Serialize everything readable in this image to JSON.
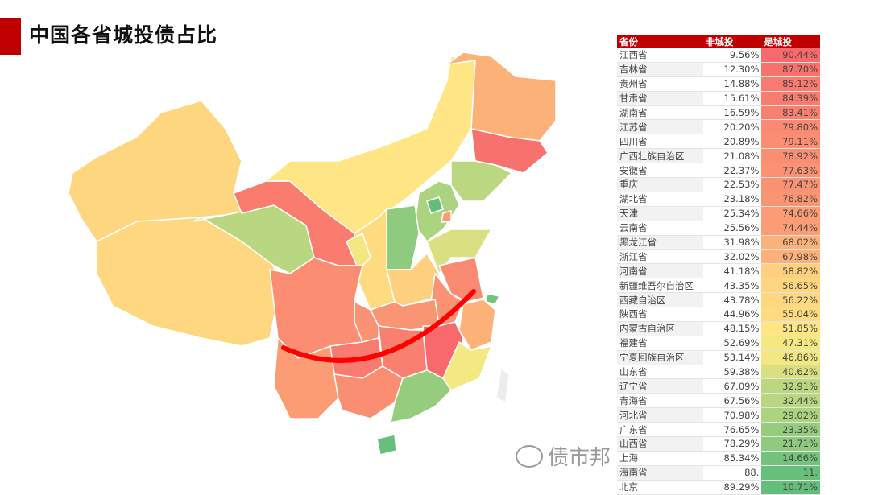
{
  "title": "中国各省城投债占比",
  "watermark": "债市邦",
  "chart_data": {
    "type": "table",
    "title": "中国各省城投债占比",
    "columns": [
      "省份",
      "非城投",
      "是城投"
    ],
    "color_scale": {
      "high": "#f8696b",
      "mid": "#ffeb84",
      "low": "#63be7b"
    },
    "rows": [
      [
        "江西省",
        "9.56%",
        "90.44%"
      ],
      [
        "吉林省",
        "12.30%",
        "87.70%"
      ],
      [
        "贵州省",
        "14.88%",
        "85.12%"
      ],
      [
        "甘肃省",
        "15.61%",
        "84.39%"
      ],
      [
        "湖南省",
        "16.59%",
        "83.41%"
      ],
      [
        "江苏省",
        "20.20%",
        "79.80%"
      ],
      [
        "四川省",
        "20.89%",
        "79.11%"
      ],
      [
        "广西壮族自治区",
        "21.08%",
        "78.92%"
      ],
      [
        "安徽省",
        "22.37%",
        "77.63%"
      ],
      [
        "重庆",
        "22.53%",
        "77.47%"
      ],
      [
        "湖北省",
        "23.18%",
        "76.82%"
      ],
      [
        "天津",
        "25.34%",
        "74.66%"
      ],
      [
        "云南省",
        "25.56%",
        "74.44%"
      ],
      [
        "黑龙江省",
        "31.98%",
        "68.02%"
      ],
      [
        "浙江省",
        "32.02%",
        "67.98%"
      ],
      [
        "河南省",
        "41.18%",
        "58.82%"
      ],
      [
        "新疆维吾尔自治区",
        "43.35%",
        "56.65%"
      ],
      [
        "西藏自治区",
        "43.78%",
        "56.22%"
      ],
      [
        "陕西省",
        "44.96%",
        "55.04%"
      ],
      [
        "内蒙古自治区",
        "48.15%",
        "51.85%"
      ],
      [
        "福建省",
        "52.69%",
        "47.31%"
      ],
      [
        "宁夏回族自治区",
        "53.14%",
        "46.86%"
      ],
      [
        "山东省",
        "59.38%",
        "40.62%"
      ],
      [
        "辽宁省",
        "67.09%",
        "32.91%"
      ],
      [
        "青海省",
        "67.56%",
        "32.44%"
      ],
      [
        "河北省",
        "70.98%",
        "29.02%"
      ],
      [
        "广东省",
        "76.65%",
        "23.35%"
      ],
      [
        "山西省",
        "78.29%",
        "21.71%"
      ],
      [
        "上海",
        "85.34%",
        "14.66%"
      ],
      [
        "海南省",
        "88.",
        "11."
      ],
      [
        "北京",
        "89.29%",
        "10.71%"
      ]
    ]
  }
}
